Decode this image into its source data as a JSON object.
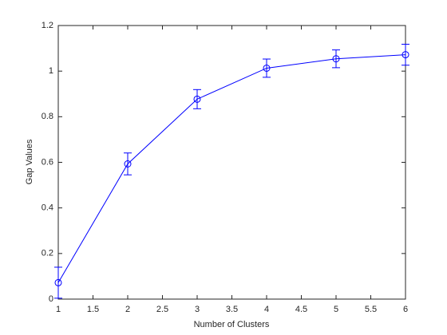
{
  "chart_data": {
    "type": "line",
    "xlabel": "Number of Clusters",
    "ylabel": "Gap Values",
    "x": [
      1,
      2,
      3,
      4,
      5,
      6
    ],
    "series": [
      {
        "color": "#0000ff",
        "marker": "o",
        "values": [
          0.072,
          0.593,
          0.877,
          1.013,
          1.054,
          1.072
        ],
        "errors": [
          0.068,
          0.048,
          0.042,
          0.04,
          0.039,
          0.046
        ]
      }
    ],
    "xlim": [
      1,
      6
    ],
    "xticks": [
      1,
      1.5,
      2,
      2.5,
      3,
      3.5,
      4,
      4.5,
      5,
      5.5,
      6
    ],
    "ylim": [
      0,
      1.2
    ],
    "yticks": [
      0,
      0.2,
      0.4,
      0.6,
      0.8,
      1,
      1.2
    ],
    "box": true
  }
}
